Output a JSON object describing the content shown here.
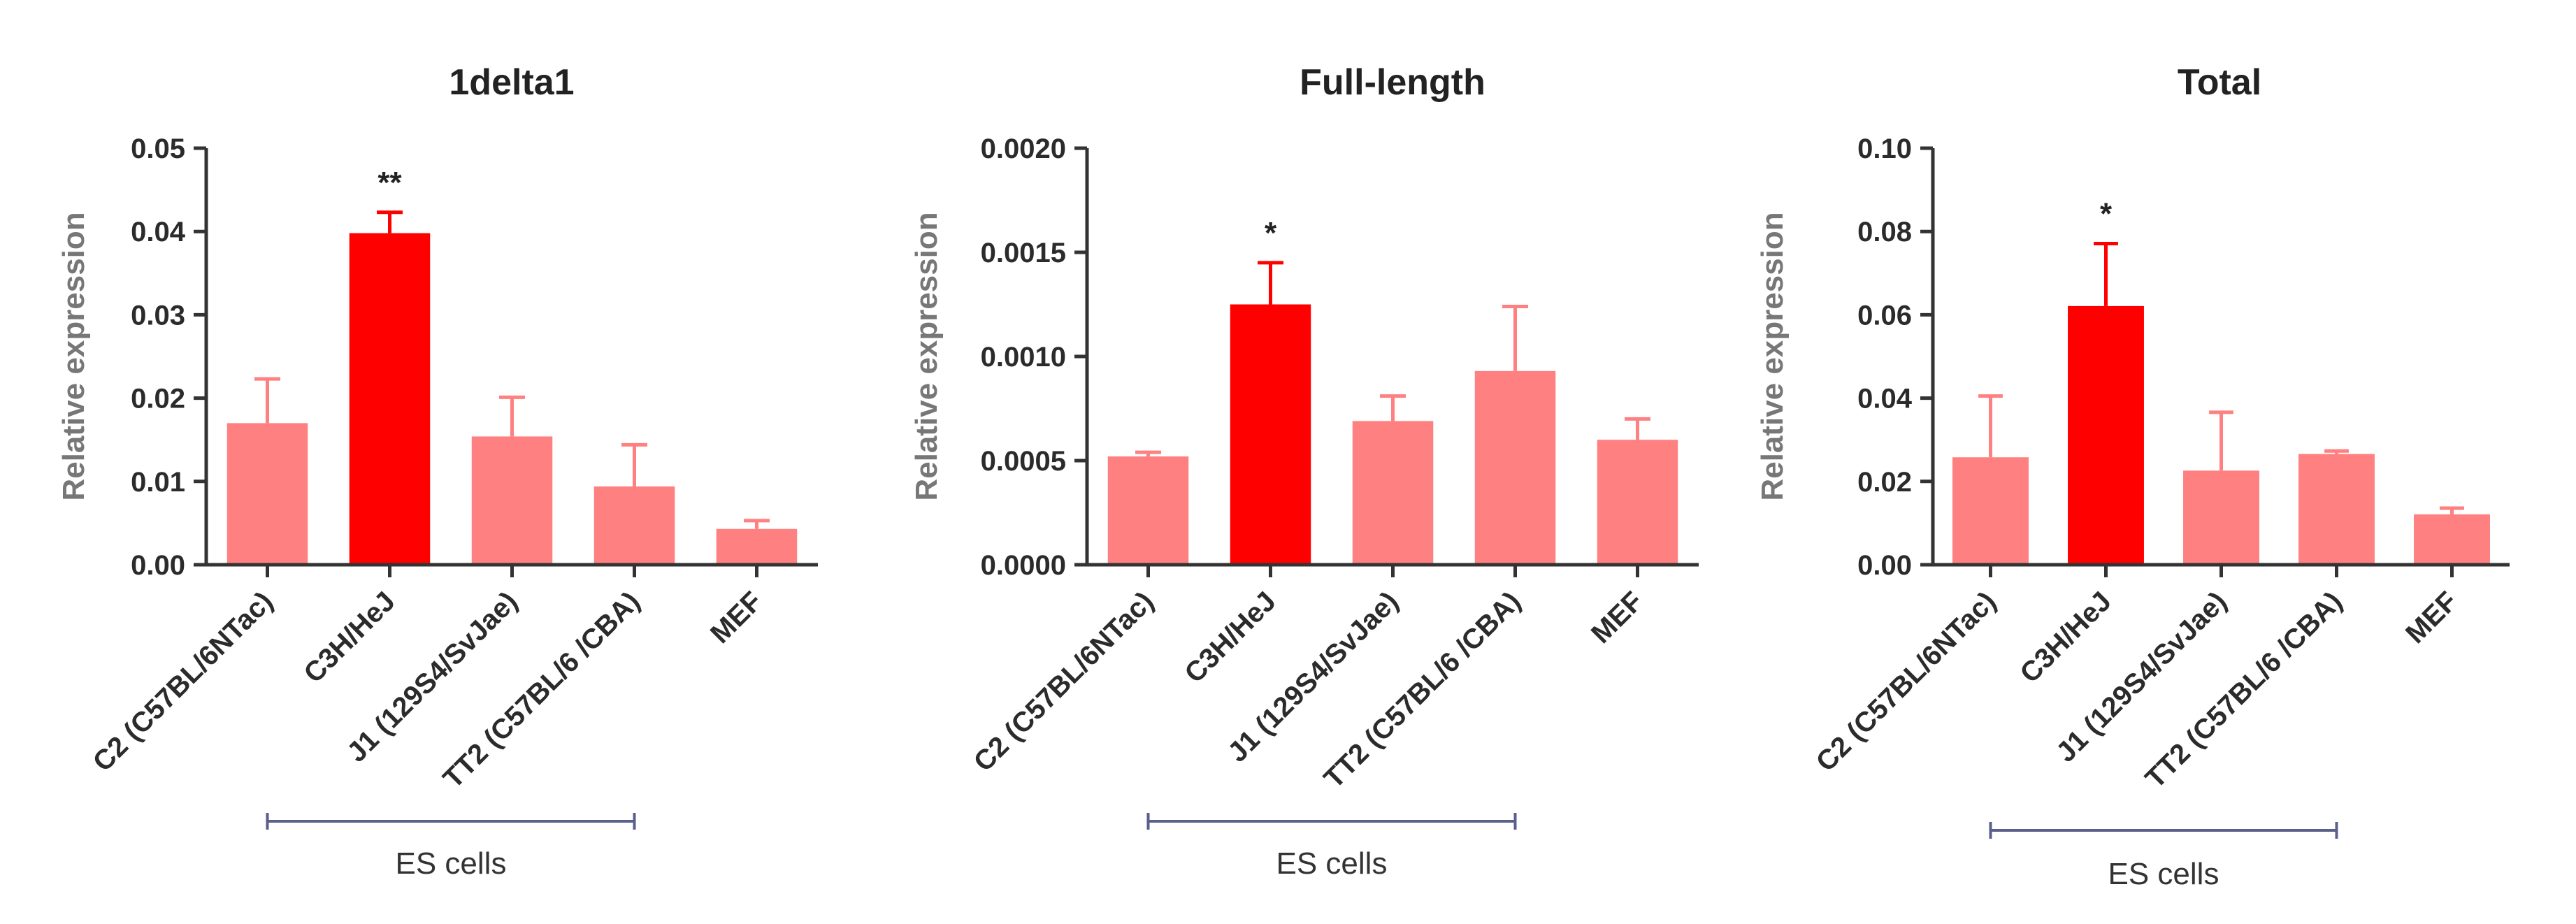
{
  "colors": {
    "bar_default": "#ff8080",
    "bar_highlight": "#ff0000",
    "axis": "#333333",
    "ylabel": "#777777",
    "bracket": "#5a5f8c"
  },
  "chart_data": [
    {
      "type": "bar",
      "title": "1delta1",
      "ylabel": "Relative expression",
      "xlabel": "",
      "categories": [
        "C2 (C57BL/6NTac)",
        "C3H/HeJ",
        "J1 (129S4/SvJae)",
        "TT2 (C57BL/6 /CBA)",
        "MEF"
      ],
      "values": [
        0.017,
        0.0398,
        0.0154,
        0.0094,
        0.0043
      ],
      "errors": [
        0.0053,
        0.0025,
        0.0047,
        0.005,
        0.001
      ],
      "highlight": [
        false,
        true,
        false,
        false,
        false
      ],
      "significance": [
        "",
        "**",
        "",
        "",
        ""
      ],
      "ylim": [
        0,
        0.05
      ],
      "yticks": [
        "0.00",
        "0.01",
        "0.02",
        "0.03",
        "0.04",
        "0.05"
      ],
      "group_label": "ES cells",
      "group_span": [
        0,
        3
      ]
    },
    {
      "type": "bar",
      "title": "Full-length",
      "ylabel": "Relative expression",
      "xlabel": "",
      "categories": [
        "C2 (C57BL/6NTac)",
        "C3H/HeJ",
        "J1 (129S4/SvJae)",
        "TT2 (C57BL/6 /CBA)",
        "MEF"
      ],
      "values": [
        0.00052,
        0.00125,
        0.00069,
        0.00093,
        0.0006
      ],
      "errors": [
        2e-05,
        0.0002,
        0.00012,
        0.00031,
        0.0001
      ],
      "highlight": [
        false,
        true,
        false,
        false,
        false
      ],
      "significance": [
        "",
        "*",
        "",
        "",
        ""
      ],
      "ylim": [
        0,
        0.002
      ],
      "yticks": [
        "0.0000",
        "0.0005",
        "0.0010",
        "0.0015",
        "0.0020"
      ],
      "group_label": "ES cells",
      "group_span": [
        0,
        3
      ]
    },
    {
      "type": "bar",
      "title": "Total",
      "ylabel": "Relative expression",
      "xlabel": "",
      "categories": [
        "C2 (C57BL/6NTac)",
        "C3H/HeJ",
        "J1 (129S4/SvJae)",
        "TT2 (C57BL/6 /CBA)",
        "MEF"
      ],
      "values": [
        0.0258,
        0.0621,
        0.0226,
        0.0266,
        0.0121
      ],
      "errors": [
        0.0147,
        0.015,
        0.014,
        0.0007,
        0.0015
      ],
      "highlight": [
        false,
        true,
        false,
        false,
        false
      ],
      "significance": [
        "",
        "*",
        "",
        "",
        ""
      ],
      "ylim": [
        0,
        0.1
      ],
      "yticks": [
        "0.00",
        "0.02",
        "0.04",
        "0.06",
        "0.08",
        "0.10"
      ],
      "group_label": "ES cells",
      "group_span": [
        0,
        3
      ]
    }
  ]
}
